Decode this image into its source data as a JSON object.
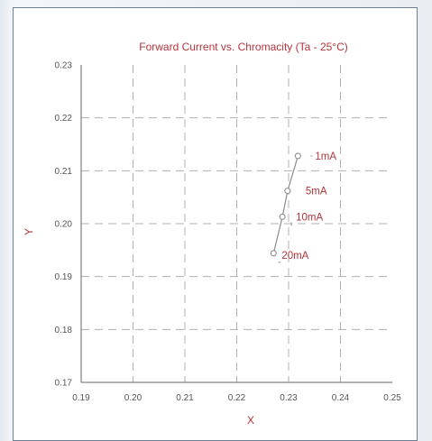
{
  "chart_data": {
    "type": "scatter",
    "title": "Forward Current vs. Chromacity (Ta - 25°C)",
    "xlabel": "X",
    "ylabel": "Y",
    "xlim": [
      0.19,
      0.25
    ],
    "ylim": [
      0.17,
      0.23
    ],
    "x_ticks": [
      "0.19",
      "0.20",
      "0.21",
      "0.22",
      "0.23",
      "0.24",
      "0.25"
    ],
    "y_ticks": [
      "0.17",
      "0.18",
      "0.19",
      "0.20",
      "0.21",
      "0.22",
      "0.23"
    ],
    "grid": true,
    "series": [
      {
        "points": [
          {
            "label": "1mA",
            "x": 0.2318,
            "y": 0.2128
          },
          {
            "label": "5mA",
            "x": 0.2298,
            "y": 0.2062
          },
          {
            "label": "10mA",
            "x": 0.2288,
            "y": 0.2013
          },
          {
            "label": "20mA",
            "x": 0.2271,
            "y": 0.1944
          }
        ]
      }
    ],
    "colors": {
      "text_accent": "#b5333b",
      "grid": "#b0b0b0",
      "line": "#8c8c8c",
      "axis": "#666666"
    }
  }
}
